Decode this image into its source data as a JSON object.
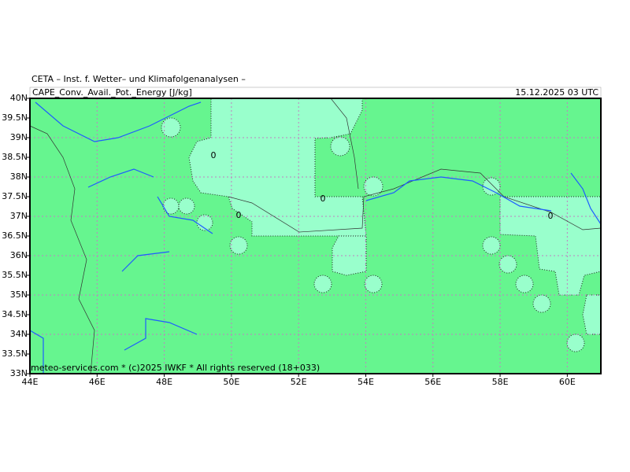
{
  "header": {
    "organization": "CETA – Inst. f. Wetter– und Klimafolgenanalysen –",
    "field": "CAPE_Conv._Avail._Pot._Energy [J/kg]",
    "date": "15.12.2025 03 UTC"
  },
  "axes": {
    "lon_ticks": [
      {
        "value": 44,
        "label": "44E"
      },
      {
        "value": 46,
        "label": "46E"
      },
      {
        "value": 48,
        "label": "48E"
      },
      {
        "value": 50,
        "label": "50E"
      },
      {
        "value": 52,
        "label": "52E"
      },
      {
        "value": 54,
        "label": "54E"
      },
      {
        "value": 56,
        "label": "56E"
      },
      {
        "value": 58,
        "label": "58E"
      },
      {
        "value": 60,
        "label": "60E"
      }
    ],
    "lat_ticks": [
      {
        "value": 40,
        "label": "40N"
      },
      {
        "value": 39.5,
        "label": "39.5N"
      },
      {
        "value": 39,
        "label": "39N"
      },
      {
        "value": 38.5,
        "label": "38.5N"
      },
      {
        "value": 38,
        "label": "38N"
      },
      {
        "value": 37.5,
        "label": "37.5N"
      },
      {
        "value": 37,
        "label": "37N"
      },
      {
        "value": 36.5,
        "label": "36.5N"
      },
      {
        "value": 36,
        "label": "36N"
      },
      {
        "value": 35.5,
        "label": "35.5N"
      },
      {
        "value": 35,
        "label": "35N"
      },
      {
        "value": 34.5,
        "label": "34.5N"
      },
      {
        "value": 34,
        "label": "34N"
      },
      {
        "value": 33.5,
        "label": "33.5N"
      },
      {
        "value": 33,
        "label": "33N"
      }
    ]
  },
  "contour_labels": [
    "0",
    "0",
    "0",
    "0"
  ],
  "footer": "meteo-services.com * (c)2025 IWKF * All rights reserved (18+033)"
}
